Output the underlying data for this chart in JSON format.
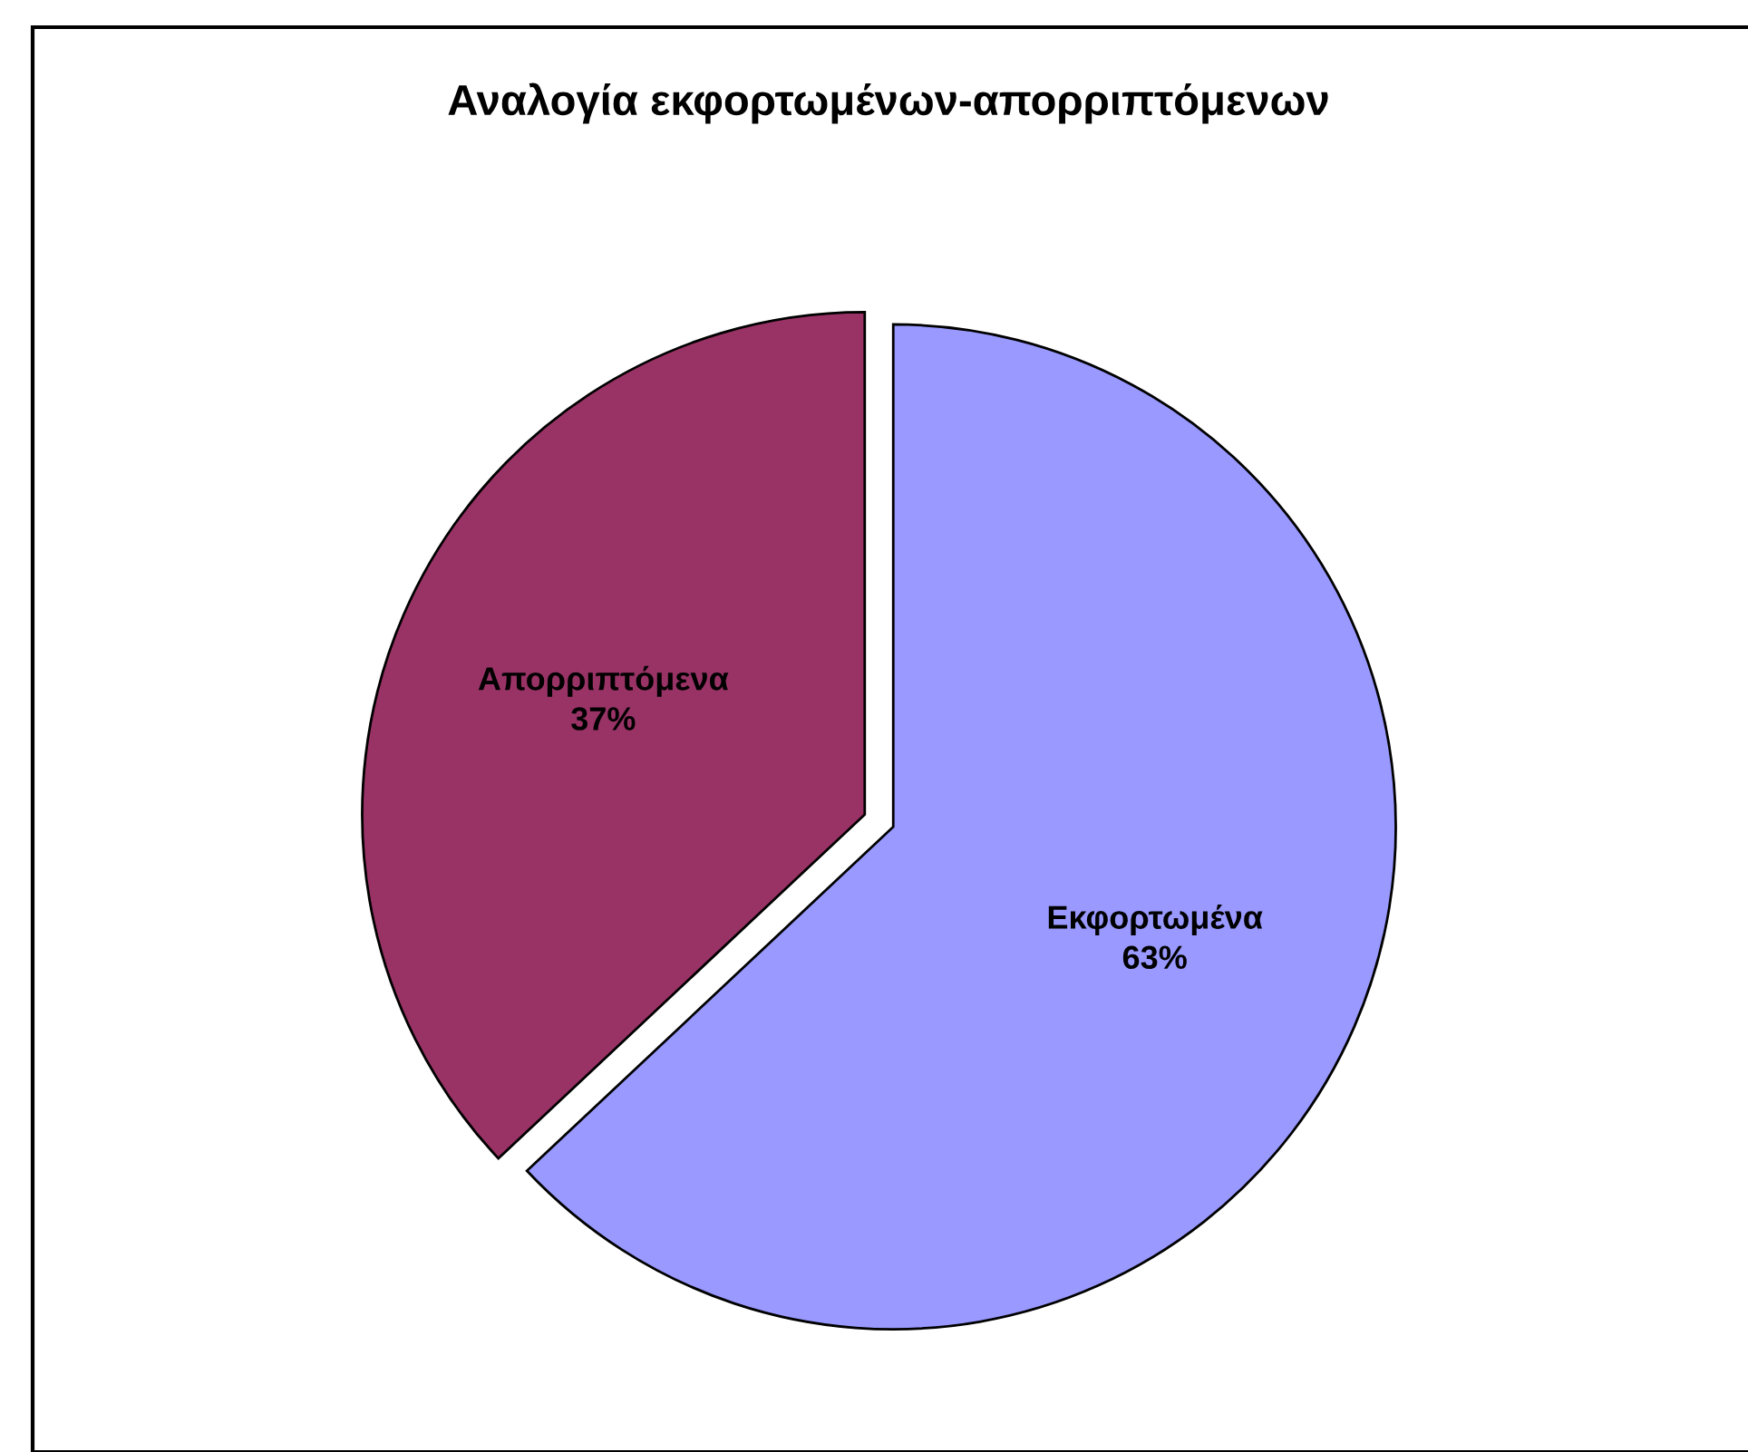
{
  "chart_data": {
    "type": "pie",
    "title": "Αναλογία εκφορτωμένων-απορριπτόμενων",
    "categories": [
      "Εκφορτωμένα",
      "Απορριπτόμενα"
    ],
    "values": [
      63,
      37
    ],
    "colors": [
      "#9999ff",
      "#993366"
    ],
    "value_labels": [
      "63%",
      "37%"
    ],
    "legend": false
  }
}
